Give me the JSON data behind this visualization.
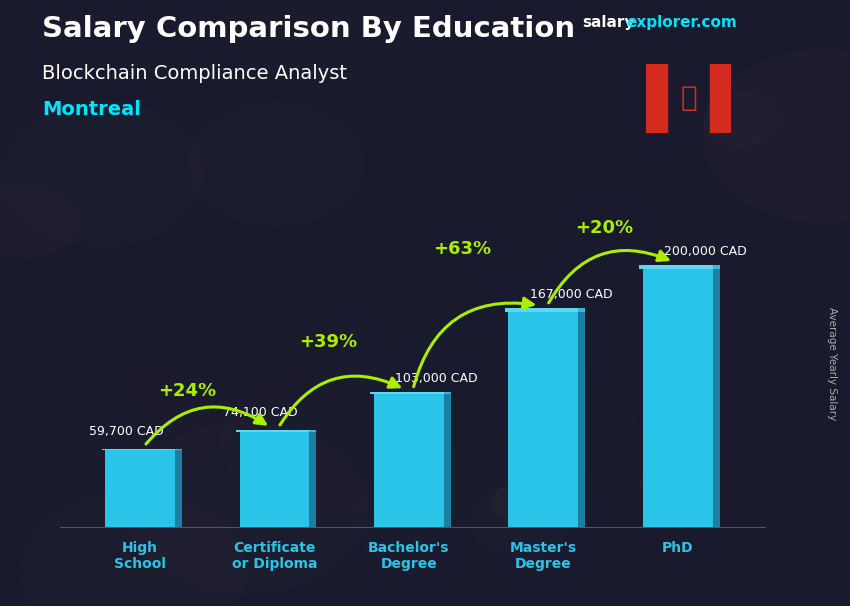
{
  "title": "Salary Comparison By Education",
  "subtitle": "Blockchain Compliance Analyst",
  "city": "Montreal",
  "watermark_salary": "salary",
  "watermark_rest": "explorer.com",
  "ylabel": "Average Yearly Salary",
  "categories": [
    "High\nSchool",
    "Certificate\nor Diploma",
    "Bachelor's\nDegree",
    "Master's\nDegree",
    "PhD"
  ],
  "values": [
    59700,
    74100,
    103000,
    167000,
    200000
  ],
  "value_labels": [
    "59,700 CAD",
    "74,100 CAD",
    "103,000 CAD",
    "167,000 CAD",
    "200,000 CAD"
  ],
  "pct_labels": [
    "+24%",
    "+39%",
    "+63%",
    "+20%"
  ],
  "bar_face_color": "#29c4e8",
  "bar_side_color": "#1a7fa0",
  "bar_top_color": "#5dd8f0",
  "bg_color": "#1a1a2e",
  "title_color": "#ffffff",
  "subtitle_color": "#ffffff",
  "city_color": "#00e5ff",
  "value_label_color": "#ffffff",
  "pct_color": "#aaee00",
  "arrow_color": "#aaee00",
  "watermark_salary_color": "#ffffff",
  "watermark_rest_color": "#00e5ff",
  "xlabel_color": "#29c4e8",
  "ylim": [
    0,
    240000
  ],
  "figsize": [
    8.5,
    6.06
  ],
  "dpi": 100
}
